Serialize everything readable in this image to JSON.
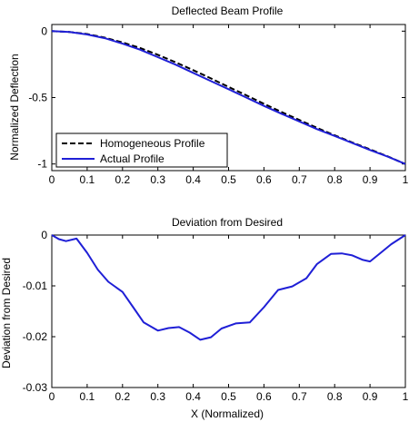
{
  "chart_data": [
    {
      "type": "line",
      "title": "Deflected Beam Profile",
      "xlabel": "",
      "ylabel": "Normalized Deflection",
      "xlim": [
        0,
        1
      ],
      "ylim": [
        -1.05,
        0.05
      ],
      "x_ticks": [
        "0",
        "0.1",
        "0.2",
        "0.3",
        "0.4",
        "0.5",
        "0.6",
        "0.7",
        "0.8",
        "0.9",
        "1"
      ],
      "y_ticks": [
        "0",
        "-0.5",
        "-1"
      ],
      "grid": false,
      "legend_position": "bottom-left",
      "series": [
        {
          "name": "Homogeneous Profile",
          "style": "dashed",
          "color": "#000000",
          "x": [
            0,
            0.05,
            0.1,
            0.15,
            0.2,
            0.25,
            0.3,
            0.35,
            0.4,
            0.45,
            0.5,
            0.55,
            0.6,
            0.65,
            0.7,
            0.75,
            0.8,
            0.85,
            0.9,
            0.95,
            1.0
          ],
          "y": [
            0,
            -0.006,
            -0.022,
            -0.049,
            -0.085,
            -0.127,
            -0.178,
            -0.234,
            -0.294,
            -0.356,
            -0.42,
            -0.483,
            -0.547,
            -0.609,
            -0.669,
            -0.728,
            -0.784,
            -0.838,
            -0.89,
            -0.943,
            -1.0
          ]
        },
        {
          "name": "Actual Profile",
          "style": "solid",
          "color": "#1f1fd6",
          "x": [
            0,
            0.05,
            0.1,
            0.15,
            0.2,
            0.25,
            0.3,
            0.35,
            0.4,
            0.45,
            0.5,
            0.55,
            0.6,
            0.65,
            0.7,
            0.75,
            0.8,
            0.85,
            0.9,
            0.95,
            1.0
          ],
          "y": [
            0,
            -0.006,
            -0.025,
            -0.053,
            -0.094,
            -0.14,
            -0.196,
            -0.252,
            -0.314,
            -0.376,
            -0.437,
            -0.5,
            -0.563,
            -0.622,
            -0.68,
            -0.738,
            -0.789,
            -0.842,
            -0.895,
            -0.945,
            -1.0
          ]
        }
      ]
    },
    {
      "type": "line",
      "title": "Deviation from Desired",
      "xlabel": "X (Normalized)",
      "ylabel": "Deviation from Desired",
      "xlim": [
        0,
        1
      ],
      "ylim": [
        -0.03,
        0
      ],
      "x_ticks": [
        "0",
        "0.1",
        "0.2",
        "0.3",
        "0.4",
        "0.5",
        "0.6",
        "0.7",
        "0.8",
        "0.9",
        "1"
      ],
      "y_ticks": [
        "0",
        "-0.01",
        "-0.02",
        "-0.03"
      ],
      "grid": false,
      "series": [
        {
          "color": "#1f1fd6",
          "x": [
            0,
            0.02,
            0.04,
            0.07,
            0.1,
            0.13,
            0.16,
            0.2,
            0.23,
            0.26,
            0.3,
            0.33,
            0.36,
            0.39,
            0.42,
            0.45,
            0.48,
            0.52,
            0.56,
            0.6,
            0.64,
            0.68,
            0.72,
            0.75,
            0.79,
            0.82,
            0.85,
            0.88,
            0.9,
            0.93,
            0.96,
            1.0
          ],
          "y": [
            0,
            -0.0008,
            -0.0012,
            -0.0007,
            -0.0035,
            -0.0068,
            -0.0092,
            -0.0112,
            -0.0142,
            -0.0172,
            -0.0188,
            -0.0183,
            -0.0181,
            -0.0192,
            -0.0206,
            -0.0201,
            -0.0184,
            -0.0174,
            -0.0172,
            -0.0142,
            -0.0108,
            -0.0101,
            -0.0085,
            -0.0057,
            -0.0037,
            -0.0036,
            -0.004,
            -0.0049,
            -0.0052,
            -0.0035,
            -0.0018,
            0
          ]
        }
      ]
    }
  ]
}
